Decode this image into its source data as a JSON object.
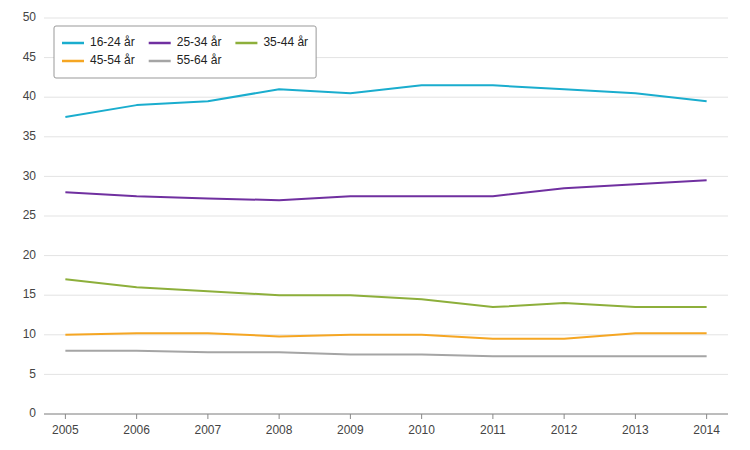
{
  "chart_data": {
    "type": "line",
    "x": [
      2005,
      2006,
      2007,
      2008,
      2009,
      2010,
      2011,
      2012,
      2013,
      2014
    ],
    "series": [
      {
        "name": "16-24 år",
        "color": "#1AADCE",
        "values": [
          37.5,
          39.0,
          39.5,
          41.0,
          40.5,
          41.5,
          41.5,
          41.0,
          40.5,
          39.5
        ]
      },
      {
        "name": "25-34 år",
        "color": "#7030A0",
        "values": [
          28.0,
          27.5,
          27.2,
          27.0,
          27.5,
          27.5,
          27.5,
          28.5,
          29.0,
          29.5
        ]
      },
      {
        "name": "35-44 år",
        "color": "#8DAF3B",
        "values": [
          17.0,
          16.0,
          15.5,
          15.0,
          15.0,
          14.5,
          13.5,
          14.0,
          13.5,
          13.5
        ]
      },
      {
        "name": "45-54 år",
        "color": "#F5A623",
        "values": [
          10.0,
          10.2,
          10.2,
          9.8,
          10.0,
          10.0,
          9.5,
          9.5,
          10.2,
          10.2
        ]
      },
      {
        "name": "55-64 år",
        "color": "#A5A5A5",
        "values": [
          8.0,
          8.0,
          7.8,
          7.8,
          7.5,
          7.5,
          7.3,
          7.3,
          7.3,
          7.3
        ]
      }
    ],
    "xlim": [
      2004.7,
      2014.3
    ],
    "xticks": [
      2005,
      2006,
      2007,
      2008,
      2009,
      2010,
      2011,
      2012,
      2013,
      2014
    ],
    "ylim": [
      0,
      50
    ],
    "yticks": [
      0,
      5,
      10,
      15,
      20,
      25,
      30,
      35,
      40,
      45,
      50
    ],
    "grid": true,
    "legend": "upper left"
  }
}
